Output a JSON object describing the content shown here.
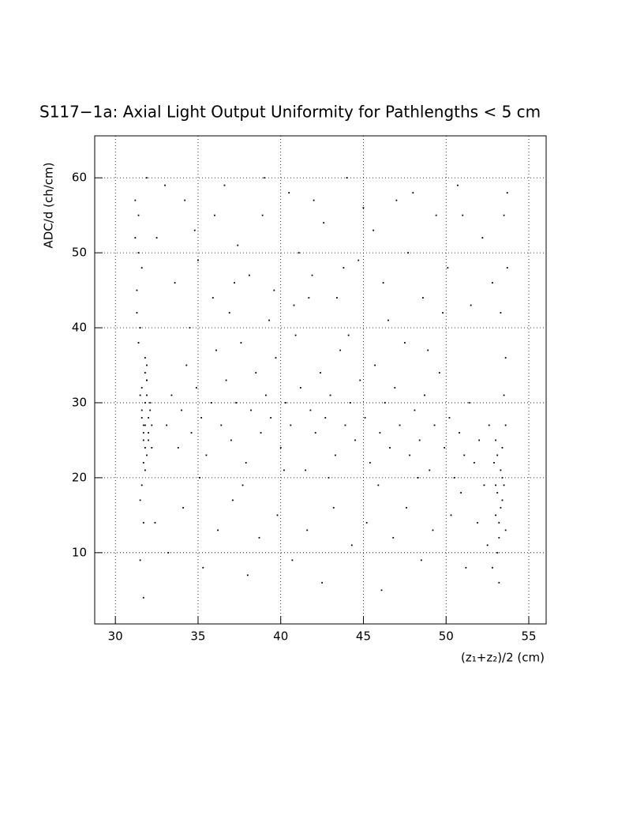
{
  "chart_data": {
    "type": "scatter",
    "title": "S117−1a: Axial Light Output Uniformity for Pathlengths < 5 cm",
    "x_label": "(z₁+z₂)/2 (cm)",
    "y_label": "ADC/d (ch/cm)",
    "color": "#000000",
    "grid": true,
    "xlim": [
      28.75,
      56.05
    ],
    "ylim": [
      0.5,
      65.6
    ],
    "xticks": [
      30,
      35,
      40,
      45,
      50,
      55
    ],
    "yticks": [
      10,
      20,
      30,
      40,
      50,
      60
    ],
    "x": [
      31.6,
      31.8,
      32.0,
      31.9,
      31.7,
      32.1,
      31.5,
      31.8,
      32.2,
      31.9,
      31.7,
      31.6,
      32.0,
      31.8,
      31.9,
      32.1,
      31.4,
      31.7,
      31.8,
      32.0,
      31.6,
      31.9,
      31.5,
      32.2,
      31.8,
      31.7,
      31.3,
      31.6,
      31.9,
      31.4,
      31.2,
      31.5,
      31.8,
      31.3,
      31.6,
      31.4,
      31.7,
      31.2,
      31.5,
      31.9,
      33.1,
      33.4,
      33.8,
      34.0,
      34.3,
      34.6,
      34.9,
      35.2,
      35.5,
      35.8,
      36.1,
      36.4,
      36.7,
      37.0,
      37.3,
      37.6,
      37.9,
      38.2,
      38.5,
      38.8,
      39.1,
      39.4,
      39.7,
      40.0,
      40.3,
      40.6,
      40.9,
      41.2,
      41.5,
      41.8,
      42.1,
      42.4,
      42.7,
      43.0,
      43.3,
      43.6,
      43.9,
      44.2,
      44.5,
      44.8,
      45.1,
      45.4,
      45.7,
      46.0,
      46.3,
      46.6,
      46.9,
      47.2,
      47.5,
      47.8,
      48.1,
      48.4,
      48.7,
      49.0,
      49.3,
      49.6,
      49.9,
      50.2,
      50.5,
      50.8,
      51.1,
      51.4,
      51.7,
      52.0,
      52.3,
      52.6,
      34.5,
      36.9,
      39.3,
      41.7,
      44.1,
      46.5,
      48.9,
      35.1,
      37.7,
      40.2,
      42.9,
      45.9,
      48.3,
      50.9,
      32.5,
      33.6,
      34.2,
      35.0,
      35.9,
      36.6,
      37.4,
      38.1,
      38.9,
      39.6,
      40.5,
      41.1,
      41.9,
      42.6,
      43.4,
      44.0,
      44.7,
      45.6,
      46.2,
      47.0,
      47.7,
      48.6,
      49.4,
      50.1,
      50.7,
      51.5,
      52.2,
      52.8,
      33.0,
      36.0,
      39.0,
      42.0,
      45.0,
      48.0,
      51.0,
      37.2,
      43.8,
      49.8,
      34.8,
      40.8,
      32.4,
      33.2,
      34.1,
      35.3,
      36.2,
      37.1,
      38.0,
      38.7,
      39.8,
      40.7,
      41.6,
      42.5,
      43.2,
      44.3,
      45.2,
      46.1,
      46.8,
      47.6,
      48.5,
      49.2,
      50.3,
      51.2,
      51.9,
      52.5,
      31.7,
      53.1,
      53.3,
      53.0,
      53.4,
      53.2,
      53.5,
      52.9,
      53.3,
      53.1,
      53.6,
      53.2,
      53.4,
      52.8,
      53.5,
      53.0,
      53.6,
      53.3,
      53.7,
      53.5,
      53.2,
      53.4,
      53.1,
      53.6,
      53.0,
      53.7
    ],
    "values": [
      28,
      30,
      26,
      33,
      25,
      29,
      31,
      27,
      24,
      35,
      22,
      32,
      28,
      36,
      23,
      30,
      38,
      27,
      34,
      25,
      29,
      31,
      40,
      27,
      21,
      26,
      45,
      19,
      33,
      50,
      57,
      17,
      24,
      42,
      48,
      55,
      14,
      52,
      9,
      60,
      27,
      31,
      24,
      29,
      35,
      26,
      32,
      28,
      23,
      30,
      37,
      27,
      33,
      25,
      30,
      38,
      22,
      29,
      34,
      26,
      31,
      28,
      36,
      24,
      30,
      27,
      39,
      32,
      21,
      29,
      26,
      34,
      28,
      31,
      23,
      37,
      27,
      30,
      25,
      33,
      28,
      22,
      35,
      26,
      30,
      24,
      32,
      27,
      38,
      23,
      29,
      25,
      31,
      21,
      27,
      34,
      24,
      28,
      20,
      26,
      23,
      30,
      22,
      25,
      19,
      27,
      40,
      42,
      41,
      44,
      39,
      41,
      37,
      20,
      19,
      21,
      20,
      19,
      20,
      18,
      52,
      46,
      57,
      49,
      44,
      59,
      51,
      47,
      55,
      45,
      58,
      50,
      47,
      54,
      44,
      60,
      49,
      53,
      46,
      57,
      50,
      44,
      55,
      48,
      59,
      43,
      52,
      46,
      59,
      55,
      60,
      57,
      56,
      58,
      55,
      46,
      48,
      42,
      53,
      43,
      14,
      10,
      16,
      8,
      13,
      17,
      7,
      12,
      15,
      9,
      13,
      6,
      16,
      11,
      14,
      5,
      12,
      16,
      9,
      13,
      15,
      8,
      14,
      11,
      4,
      18,
      21,
      15,
      24,
      12,
      19,
      22,
      16,
      10,
      27,
      14,
      20,
      8,
      31,
      25,
      36,
      42,
      48,
      55,
      6,
      17,
      23,
      13,
      19,
      58
    ]
  }
}
